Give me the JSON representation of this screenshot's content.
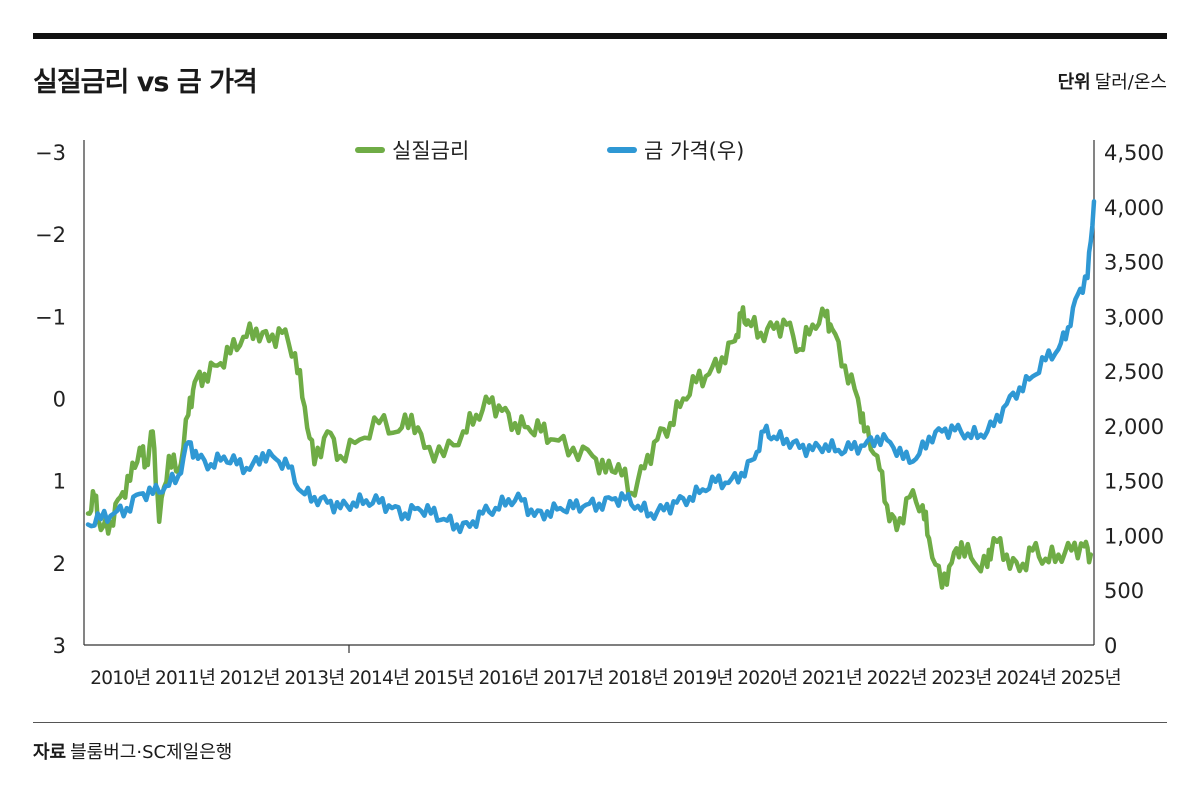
{
  "header": {
    "title": "실질금리 vs 금 가격",
    "unit_label": "단위",
    "unit_value": "달러/온스"
  },
  "footer": {
    "source_label": "자료",
    "source_value": "블룸버그·SC제일은행"
  },
  "chart_data": {
    "type": "line",
    "title": "실질금리 vs 금 가격",
    "x_range": [
      2010.0,
      2025.55
    ],
    "x_ticks": [
      {
        "value": 2010,
        "label": "2010년"
      },
      {
        "value": 2011,
        "label": "2011년"
      },
      {
        "value": 2012,
        "label": "2012년"
      },
      {
        "value": 2013,
        "label": "2013년"
      },
      {
        "value": 2014,
        "label": "2014년"
      },
      {
        "value": 2015,
        "label": "2015년"
      },
      {
        "value": 2016,
        "label": "2016년"
      },
      {
        "value": 2017,
        "label": "2017년"
      },
      {
        "value": 2018,
        "label": "2018년"
      },
      {
        "value": 2019,
        "label": "2019년"
      },
      {
        "value": 2020,
        "label": "2020년"
      },
      {
        "value": 2021,
        "label": "2021년"
      },
      {
        "value": 2022,
        "label": "2022년"
      },
      {
        "value": 2023,
        "label": "2023년"
      },
      {
        "value": 2024,
        "label": "2024년"
      },
      {
        "value": 2025,
        "label": "2025년"
      }
    ],
    "y_left": {
      "range": [
        -3,
        3
      ],
      "inverted": true,
      "ticks": [
        {
          "value": -3,
          "label": "−3"
        },
        {
          "value": -2,
          "label": "−2"
        },
        {
          "value": -1,
          "label": "−1"
        },
        {
          "value": 0,
          "label": "0"
        },
        {
          "value": 1,
          "label": "1"
        },
        {
          "value": 2,
          "label": "2"
        },
        {
          "value": 3,
          "label": "3"
        }
      ]
    },
    "y_right": {
      "range": [
        0,
        4500
      ],
      "ticks": [
        {
          "value": 0,
          "label": "0"
        },
        {
          "value": 500,
          "label": "500"
        },
        {
          "value": 1000,
          "label": "1,000"
        },
        {
          "value": 1500,
          "label": "1,500"
        },
        {
          "value": 2000,
          "label": "2,000"
        },
        {
          "value": 2500,
          "label": "2,500"
        },
        {
          "value": 3000,
          "label": "3,000"
        },
        {
          "value": 3500,
          "label": "3,500"
        },
        {
          "value": 4000,
          "label": "4,000"
        },
        {
          "value": 4500,
          "label": "4,500"
        }
      ]
    },
    "legend_position": "top-center",
    "series": [
      {
        "name": "실질금리",
        "axis": "left",
        "color": "#6fac46",
        "x": [
          2010.0,
          2010.1,
          2010.2,
          2010.35,
          2010.5,
          2010.65,
          2010.8,
          2010.9,
          2011.0,
          2011.1,
          2011.25,
          2011.4,
          2011.55,
          2011.65,
          2011.8,
          2012.0,
          2012.2,
          2012.4,
          2012.6,
          2012.8,
          2013.0,
          2013.2,
          2013.35,
          2013.5,
          2013.7,
          2013.9,
          2014.2,
          2014.5,
          2014.8,
          2015.0,
          2015.2,
          2015.5,
          2015.8,
          2016.0,
          2016.2,
          2016.4,
          2016.6,
          2016.8,
          2017.0,
          2017.2,
          2017.5,
          2017.8,
          2018.0,
          2018.2,
          2018.4,
          2018.6,
          2018.8,
          2019.0,
          2019.2,
          2019.4,
          2019.6,
          2019.8,
          2020.0,
          2020.1,
          2020.2,
          2020.4,
          2020.6,
          2020.8,
          2021.0,
          2021.2,
          2021.4,
          2021.5,
          2021.7,
          2021.9,
          2022.0,
          2022.2,
          2022.35,
          2022.5,
          2022.7,
          2022.9,
          2023.0,
          2023.2,
          2023.35,
          2023.5,
          2023.7,
          2023.9,
          2024.0,
          2024.2,
          2024.4,
          2024.6,
          2024.8,
          2025.0,
          2025.2,
          2025.4,
          2025.5
        ],
        "values": [
          1.4,
          1.2,
          1.6,
          1.5,
          1.2,
          1.0,
          0.6,
          0.8,
          0.4,
          1.5,
          0.7,
          0.9,
          0.2,
          -0.2,
          -0.3,
          -0.4,
          -0.55,
          -0.75,
          -0.85,
          -0.7,
          -0.8,
          -0.55,
          0.1,
          0.8,
          0.4,
          0.7,
          0.5,
          0.3,
          0.4,
          0.2,
          0.6,
          0.7,
          0.4,
          0.2,
          0.05,
          0.15,
          0.3,
          0.35,
          0.4,
          0.5,
          0.6,
          0.7,
          0.9,
          0.8,
          1.15,
          0.85,
          0.5,
          0.3,
          0.0,
          -0.2,
          -0.3,
          -0.5,
          -0.7,
          -1.0,
          -0.95,
          -0.8,
          -0.85,
          -0.9,
          -0.6,
          -0.9,
          -1.0,
          -0.85,
          -0.4,
          0.0,
          0.4,
          0.7,
          1.3,
          1.6,
          1.2,
          1.3,
          1.7,
          2.3,
          2.0,
          1.75,
          2.0,
          2.05,
          1.7,
          1.9,
          2.1,
          1.85,
          1.95,
          1.9,
          1.85,
          1.8,
          1.9
        ]
      },
      {
        "name": "금 가격(우)",
        "axis": "right",
        "color": "#2f98d4",
        "x": [
          2010.0,
          2010.2,
          2010.4,
          2010.6,
          2010.8,
          2011.0,
          2011.2,
          2011.4,
          2011.55,
          2011.7,
          2011.9,
          2012.1,
          2012.3,
          2012.5,
          2012.7,
          2012.9,
          2013.1,
          2013.3,
          2013.5,
          2013.7,
          2013.9,
          2014.1,
          2014.3,
          2014.5,
          2014.7,
          2014.9,
          2015.1,
          2015.3,
          2015.5,
          2015.7,
          2015.9,
          2016.1,
          2016.3,
          2016.5,
          2016.7,
          2016.9,
          2017.1,
          2017.3,
          2017.5,
          2017.7,
          2017.9,
          2018.1,
          2018.3,
          2018.5,
          2018.7,
          2018.9,
          2019.1,
          2019.3,
          2019.5,
          2019.7,
          2019.9,
          2020.1,
          2020.3,
          2020.45,
          2020.6,
          2020.8,
          2021.0,
          2021.2,
          2021.4,
          2021.6,
          2021.8,
          2022.0,
          2022.2,
          2022.4,
          2022.6,
          2022.8,
          2023.0,
          2023.2,
          2023.4,
          2023.6,
          2023.8,
          2024.0,
          2024.2,
          2024.4,
          2024.6,
          2024.8,
          2025.0,
          2025.15,
          2025.3,
          2025.45,
          2025.55
        ],
        "values": [
          1100,
          1150,
          1200,
          1250,
          1380,
          1380,
          1450,
          1550,
          1850,
          1700,
          1650,
          1720,
          1650,
          1600,
          1750,
          1700,
          1620,
          1400,
          1350,
          1300,
          1250,
          1300,
          1320,
          1300,
          1250,
          1200,
          1250,
          1200,
          1150,
          1100,
          1080,
          1200,
          1250,
          1330,
          1320,
          1180,
          1220,
          1250,
          1250,
          1280,
          1290,
          1330,
          1330,
          1270,
          1200,
          1230,
          1300,
          1350,
          1420,
          1490,
          1480,
          1570,
          1700,
          1950,
          1900,
          1880,
          1800,
          1780,
          1830,
          1780,
          1790,
          1820,
          1900,
          1850,
          1700,
          1700,
          1900,
          1950,
          1960,
          1930,
          1920,
          2000,
          2200,
          2350,
          2450,
          2600,
          2700,
          2900,
          3200,
          3350,
          4050
        ]
      }
    ]
  }
}
